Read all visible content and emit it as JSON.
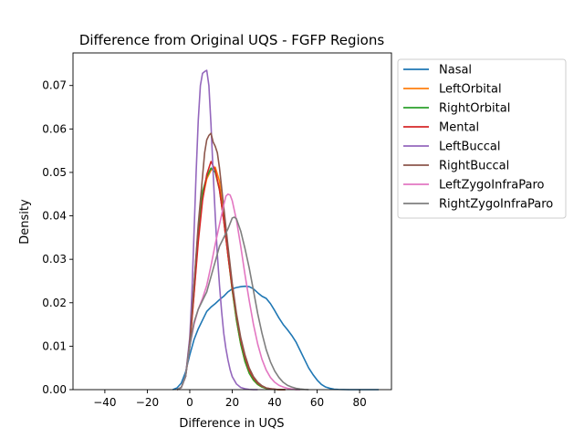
{
  "chart_data": {
    "type": "line",
    "title": "Difference from Original UQS - FGFP Regions",
    "xlabel": "Difference in UQS",
    "ylabel": "Density",
    "xlim": [
      -55,
      95
    ],
    "ylim": [
      0,
      0.0775
    ],
    "xticks": [
      -40,
      -20,
      0,
      20,
      40,
      60,
      80
    ],
    "xtick_labels": [
      "−40",
      "−20",
      "0",
      "20",
      "40",
      "60",
      "80"
    ],
    "yticks": [
      0,
      0.01,
      0.02,
      0.03,
      0.04,
      0.05,
      0.06,
      0.07
    ],
    "ytick_labels": [
      "0.00",
      "0.01",
      "0.02",
      "0.03",
      "0.04",
      "0.05",
      "0.06",
      "0.07"
    ],
    "grid": false,
    "legend_position": "outside upper right",
    "series": [
      {
        "name": "Nasal",
        "color": "#1f77b4",
        "x": [
          -8,
          -6,
          -4,
          -2,
          0,
          2,
          4,
          6,
          8,
          10,
          12,
          14,
          16,
          18,
          20,
          22,
          24,
          26,
          28,
          30,
          32,
          34,
          36,
          38,
          40,
          42,
          44,
          46,
          48,
          50,
          52,
          54,
          56,
          58,
          60,
          62,
          64,
          66,
          68,
          70,
          75,
          80,
          85,
          89
        ],
        "y": [
          0.0,
          0.0004,
          0.0015,
          0.004,
          0.008,
          0.0115,
          0.014,
          0.016,
          0.018,
          0.019,
          0.0198,
          0.0207,
          0.0215,
          0.0225,
          0.0232,
          0.0235,
          0.0237,
          0.0238,
          0.0237,
          0.0232,
          0.0223,
          0.0215,
          0.021,
          0.0198,
          0.0182,
          0.0165,
          0.015,
          0.0138,
          0.0125,
          0.011,
          0.009,
          0.007,
          0.005,
          0.0035,
          0.0022,
          0.0012,
          0.0006,
          0.0003,
          0.0001,
          5e-05,
          0.0,
          0.0,
          0.0,
          0.0
        ]
      },
      {
        "name": "LeftOrbital",
        "color": "#ff7f0e",
        "x": [
          -6,
          -4,
          -2,
          0,
          2,
          4,
          6,
          8,
          10,
          12,
          14,
          16,
          18,
          20,
          22,
          24,
          26,
          28,
          30,
          32,
          34,
          36,
          38,
          40,
          42,
          45
        ],
        "y": [
          0.0,
          0.0005,
          0.003,
          0.01,
          0.022,
          0.035,
          0.044,
          0.0485,
          0.0505,
          0.0512,
          0.048,
          0.04,
          0.031,
          0.023,
          0.016,
          0.0105,
          0.0065,
          0.0038,
          0.0022,
          0.0012,
          0.0006,
          0.0003,
          0.00015,
          5e-05,
          0.0,
          0.0
        ]
      },
      {
        "name": "RightOrbital",
        "color": "#2ca02c",
        "x": [
          -6,
          -4,
          -2,
          0,
          2,
          4,
          6,
          8,
          10,
          12,
          14,
          16,
          18,
          20,
          22,
          24,
          26,
          28,
          30,
          32,
          34,
          36,
          38,
          40,
          42,
          45
        ],
        "y": [
          0.0,
          0.0005,
          0.003,
          0.011,
          0.024,
          0.037,
          0.0455,
          0.049,
          0.051,
          0.05,
          0.046,
          0.039,
          0.031,
          0.023,
          0.016,
          0.0105,
          0.0065,
          0.0038,
          0.0022,
          0.0012,
          0.0006,
          0.0003,
          0.00015,
          5e-05,
          0.0,
          0.0
        ]
      },
      {
        "name": "Mental",
        "color": "#d62728",
        "x": [
          -6,
          -4,
          -2,
          0,
          2,
          4,
          6,
          8,
          10,
          12,
          14,
          16,
          18,
          20,
          22,
          24,
          26,
          28,
          30,
          32,
          34,
          36,
          38,
          40,
          42,
          45
        ],
        "y": [
          0.0,
          0.0005,
          0.003,
          0.01,
          0.022,
          0.034,
          0.0435,
          0.0495,
          0.0525,
          0.0505,
          0.046,
          0.039,
          0.031,
          0.0235,
          0.017,
          0.0115,
          0.0075,
          0.0045,
          0.0027,
          0.0015,
          0.0008,
          0.0004,
          0.0002,
          0.0001,
          0.0,
          0.0
        ]
      },
      {
        "name": "LeftBuccal",
        "color": "#9467bd",
        "x": [
          -6,
          -4,
          -2,
          0,
          1,
          2,
          3,
          4,
          5,
          6,
          7,
          8,
          9,
          10,
          11,
          12,
          13,
          14,
          15,
          16,
          17,
          18,
          19,
          20,
          22,
          24,
          26,
          28,
          30,
          32
        ],
        "y": [
          0.0,
          0.0005,
          0.003,
          0.012,
          0.022,
          0.036,
          0.05,
          0.062,
          0.07,
          0.0728,
          0.0732,
          0.0735,
          0.07,
          0.061,
          0.05,
          0.04,
          0.031,
          0.024,
          0.018,
          0.013,
          0.0095,
          0.0068,
          0.0046,
          0.003,
          0.0013,
          0.0005,
          0.0002,
          5e-05,
          0.0,
          0.0
        ]
      },
      {
        "name": "RightBuccal",
        "color": "#8c564b",
        "x": [
          -6,
          -4,
          -2,
          0,
          2,
          4,
          6,
          7,
          8,
          9,
          10,
          11,
          12,
          13,
          14,
          16,
          18,
          20,
          22,
          24,
          26,
          28,
          30,
          32,
          34,
          36,
          38,
          40,
          42,
          45
        ],
        "y": [
          0.0,
          0.0005,
          0.003,
          0.011,
          0.024,
          0.038,
          0.049,
          0.0545,
          0.0575,
          0.0585,
          0.059,
          0.057,
          0.056,
          0.0545,
          0.051,
          0.042,
          0.033,
          0.0245,
          0.0175,
          0.012,
          0.008,
          0.005,
          0.003,
          0.0017,
          0.0009,
          0.0004,
          0.0002,
          0.0001,
          0.0,
          0.0
        ]
      },
      {
        "name": "LeftZygoInfraParo",
        "color": "#e377c2",
        "x": [
          -6,
          -4,
          -2,
          0,
          2,
          4,
          6,
          8,
          10,
          12,
          14,
          16,
          17,
          18,
          19,
          20,
          22,
          24,
          26,
          28,
          30,
          32,
          34,
          36,
          38,
          40,
          42,
          44,
          46,
          48,
          50,
          52
        ],
        "y": [
          0.0,
          0.0005,
          0.003,
          0.01,
          0.015,
          0.0185,
          0.021,
          0.024,
          0.0285,
          0.0335,
          0.038,
          0.0425,
          0.0445,
          0.045,
          0.0448,
          0.0435,
          0.039,
          0.033,
          0.0265,
          0.0205,
          0.015,
          0.0105,
          0.007,
          0.0045,
          0.0028,
          0.0017,
          0.001,
          0.0006,
          0.0003,
          0.00015,
          0.0,
          0.0
        ]
      },
      {
        "name": "RightZygoInfraParo",
        "color": "#7f7f7f",
        "x": [
          -6,
          -4,
          -2,
          0,
          2,
          4,
          6,
          8,
          10,
          12,
          14,
          16,
          18,
          20,
          21,
          22,
          24,
          26,
          28,
          30,
          32,
          34,
          36,
          38,
          40,
          42,
          44,
          46,
          48,
          50,
          52,
          54,
          56
        ],
        "y": [
          0.0,
          0.0005,
          0.003,
          0.01,
          0.0155,
          0.0185,
          0.0205,
          0.0225,
          0.026,
          0.0295,
          0.033,
          0.035,
          0.037,
          0.0395,
          0.0397,
          0.0393,
          0.0365,
          0.0325,
          0.028,
          0.0228,
          0.0175,
          0.013,
          0.0092,
          0.0064,
          0.0043,
          0.0028,
          0.0017,
          0.001,
          0.0006,
          0.0003,
          0.00015,
          5e-05,
          0.0
        ]
      }
    ]
  }
}
